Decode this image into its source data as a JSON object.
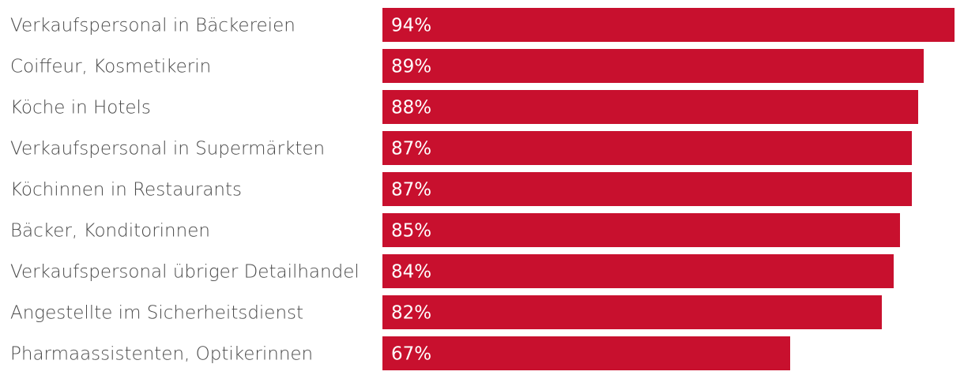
{
  "chart_data": {
    "type": "bar",
    "orientation": "horizontal",
    "categories": [
      "Verkaufspersonal in Bäckereien",
      "Coiffeur, Kosmetikerin",
      "Köche in Hotels",
      "Verkaufspersonal in Supermärkten",
      "Köchinnen in Restaurants",
      "Bäcker, Konditorinnen",
      "Verkaufspersonal übriger Detailhandel",
      "Angestellte im Sicherheitsdienst",
      "Pharmaassistenten, Optikerinnen"
    ],
    "values": [
      94,
      89,
      88,
      87,
      87,
      85,
      84,
      82,
      67
    ],
    "value_labels": [
      "94%",
      "89%",
      "88%",
      "87%",
      "87%",
      "85%",
      "84%",
      "82%",
      "67%"
    ],
    "unit": "%",
    "title": "",
    "xlabel": "",
    "ylabel": "",
    "xlim": [
      0,
      100
    ],
    "grid": false,
    "legend": "none",
    "bar_color": "#c8102e"
  }
}
